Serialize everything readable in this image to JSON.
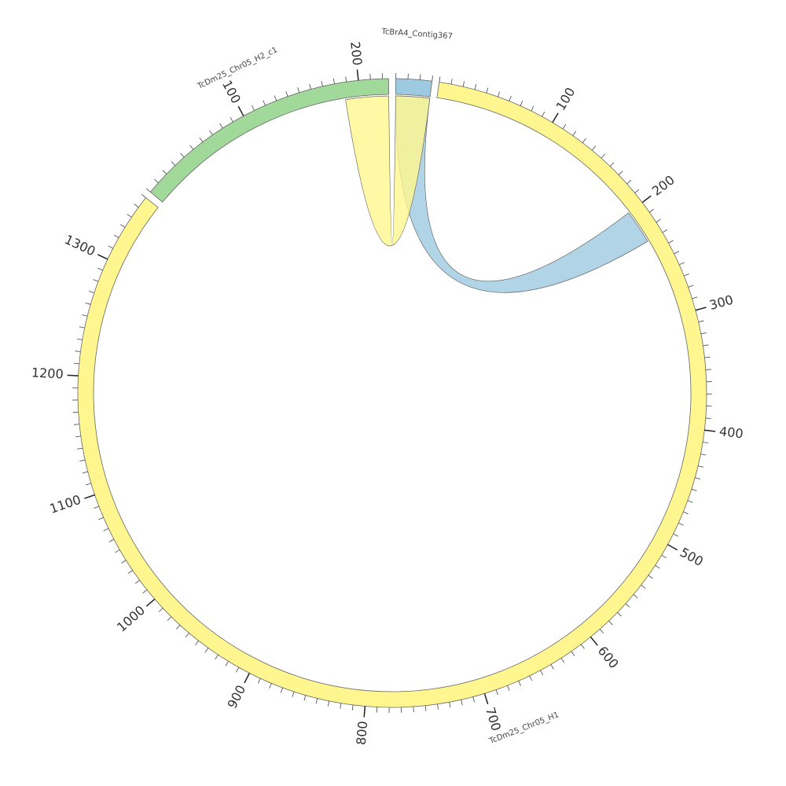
{
  "chart_data": {
    "type": "chord",
    "segments": [
      {
        "name": "TcBrA4_Contig367",
        "length": 30,
        "color": "#9ecae1",
        "ticks": [],
        "minor_tick_interval": 10
      },
      {
        "name": "TcDm25_Chr05_H1",
        "length": 1360,
        "color": "#fff68f",
        "ticks": [
          100,
          200,
          300,
          400,
          500,
          600,
          700,
          800,
          900,
          1000,
          1100,
          1200,
          1300
        ],
        "minor_tick_interval": 10
      },
      {
        "name": "TcDm25_Chr05_H2_c1",
        "length": 225,
        "color": "#a1d99b",
        "ticks": [
          100,
          200
        ],
        "minor_tick_interval": 10
      }
    ],
    "links": [
      {
        "source": "TcDm25_Chr05_H1",
        "source_range": [
          200,
          230
        ],
        "target": "TcBrA4_Contig367",
        "target_range": [
          0,
          30
        ],
        "color": "#9ecae1"
      },
      {
        "source": "TcDm25_Chr05_H2_c1",
        "source_range": [
          187,
          225
        ],
        "target": "TcBrA4_Contig367",
        "target_range": [
          0,
          30
        ],
        "color": "#fff68f"
      }
    ]
  }
}
